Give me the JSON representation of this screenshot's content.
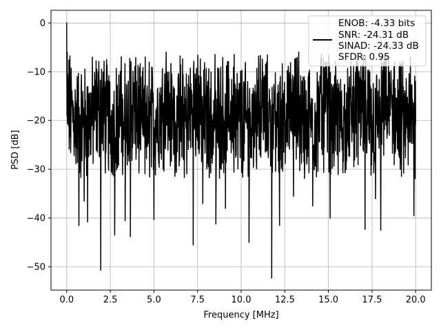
{
  "chart_data": {
    "type": "line",
    "title": "",
    "xlabel": "Frequency [MHz]",
    "ylabel": "PSD [dB]",
    "xlim": [
      -0.9,
      20.9
    ],
    "ylim": [
      -54.8,
      2.6
    ],
    "x_ticks": [
      0.0,
      2.5,
      5.0,
      7.5,
      10.0,
      12.5,
      15.0,
      17.5,
      20.0
    ],
    "x_tick_labels": [
      "0.0",
      "2.5",
      "5.0",
      "7.5",
      "10.0",
      "12.5",
      "15.0",
      "17.5",
      "20.0"
    ],
    "y_ticks": [
      0,
      -10,
      -20,
      -30,
      -40,
      -50
    ],
    "y_tick_labels": [
      "0",
      "−10",
      "−20",
      "−30",
      "−40",
      "−50"
    ],
    "grid": true,
    "legend_position": "top-right",
    "legend_entries": [
      "ENOB: -4.33 bits",
      "SNR: -24.31 dB",
      "SINAD: -24.33 dB",
      "SFDR: 0.95"
    ],
    "series": [
      {
        "color": "#000000",
        "points_note": "dense noise trace from 0 to 20 MHz, peak 0 dB at 0 MHz, mostly between -10 and -30 dB",
        "peak": {
          "x": 0.0,
          "y": 0.0
        },
        "deep_minima": [
          {
            "x": 0.7,
            "y": -41.5
          },
          {
            "x": 1.0,
            "y": -36.5
          },
          {
            "x": 1.2,
            "y": -40.8
          },
          {
            "x": 1.95,
            "y": -50.7
          },
          {
            "x": 2.75,
            "y": -43.5
          },
          {
            "x": 3.35,
            "y": -40.5
          },
          {
            "x": 3.65,
            "y": -43.8
          },
          {
            "x": 5.0,
            "y": -40.3
          },
          {
            "x": 7.25,
            "y": -45.5
          },
          {
            "x": 7.8,
            "y": -37.0
          },
          {
            "x": 8.55,
            "y": -41.2
          },
          {
            "x": 9.1,
            "y": -38.0
          },
          {
            "x": 10.45,
            "y": -45.0
          },
          {
            "x": 11.75,
            "y": -52.3
          },
          {
            "x": 12.2,
            "y": -41.5
          },
          {
            "x": 13.0,
            "y": -35.5
          },
          {
            "x": 14.1,
            "y": -37.5
          },
          {
            "x": 15.1,
            "y": -40.0
          },
          {
            "x": 17.1,
            "y": -42.3
          },
          {
            "x": 17.7,
            "y": -36.0
          },
          {
            "x": 18.0,
            "y": -42.5
          },
          {
            "x": 19.9,
            "y": -39.5
          }
        ],
        "peaks": [
          {
            "x": 2.0,
            "y": -9.5
          },
          {
            "x": 4.5,
            "y": -7.0
          },
          {
            "x": 5.7,
            "y": -6.0
          },
          {
            "x": 6.5,
            "y": -6.8
          },
          {
            "x": 8.5,
            "y": -6.5
          },
          {
            "x": 9.6,
            "y": -6.5
          },
          {
            "x": 11.0,
            "y": -6.8
          },
          {
            "x": 13.3,
            "y": -6.0
          },
          {
            "x": 14.6,
            "y": -6.5
          },
          {
            "x": 17.0,
            "y": -6.5
          },
          {
            "x": 19.7,
            "y": -7.0
          }
        ],
        "typical_range_db": [
          -30,
          -8
        ]
      }
    ]
  }
}
